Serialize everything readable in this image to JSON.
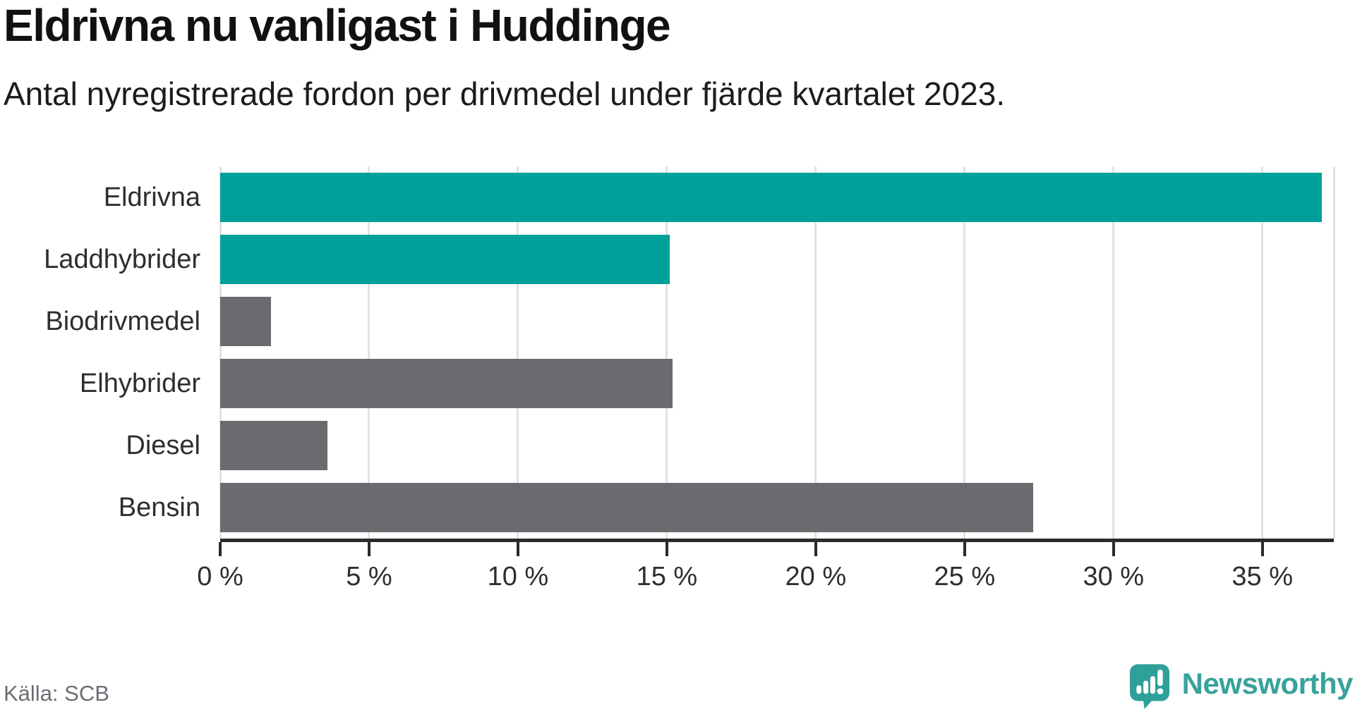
{
  "chart_data": {
    "type": "bar",
    "orientation": "horizontal",
    "title": "Eldrivna nu vanligast i Huddinge",
    "subtitle": "Antal nyregistrerade fordon per drivmedel under fjärde kvartalet 2023.",
    "categories": [
      "Eldrivna",
      "Laddhybrider",
      "Biodrivmedel",
      "Elhybrider",
      "Diesel",
      "Bensin"
    ],
    "values": [
      37.0,
      15.1,
      1.7,
      15.2,
      3.6,
      27.3
    ],
    "value_unit": "percent",
    "bar_colors": [
      "#00A09A",
      "#00A09A",
      "#6A6A6F",
      "#6A6A6F",
      "#6A6A6F",
      "#6A6A6F"
    ],
    "highlight_color": "#00A09A",
    "base_color": "#6A6A6F",
    "x_ticks": [
      0,
      5,
      10,
      15,
      20,
      25,
      30,
      35
    ],
    "x_tick_labels": [
      "0 %",
      "5 %",
      "10 %",
      "15 %",
      "20 %",
      "25 %",
      "30 %",
      "35 %"
    ],
    "xlim": [
      0,
      37.4
    ],
    "grid": true,
    "gridline_color": "#E2E2E2",
    "axis_color": "#2B2B2B",
    "legend": "none"
  },
  "footer": {
    "source": "Källa: SCB",
    "brand": "Newsworthy",
    "brand_color": "#38A29B",
    "logo_icon": "newsworthy-pin-barchart-icon"
  }
}
